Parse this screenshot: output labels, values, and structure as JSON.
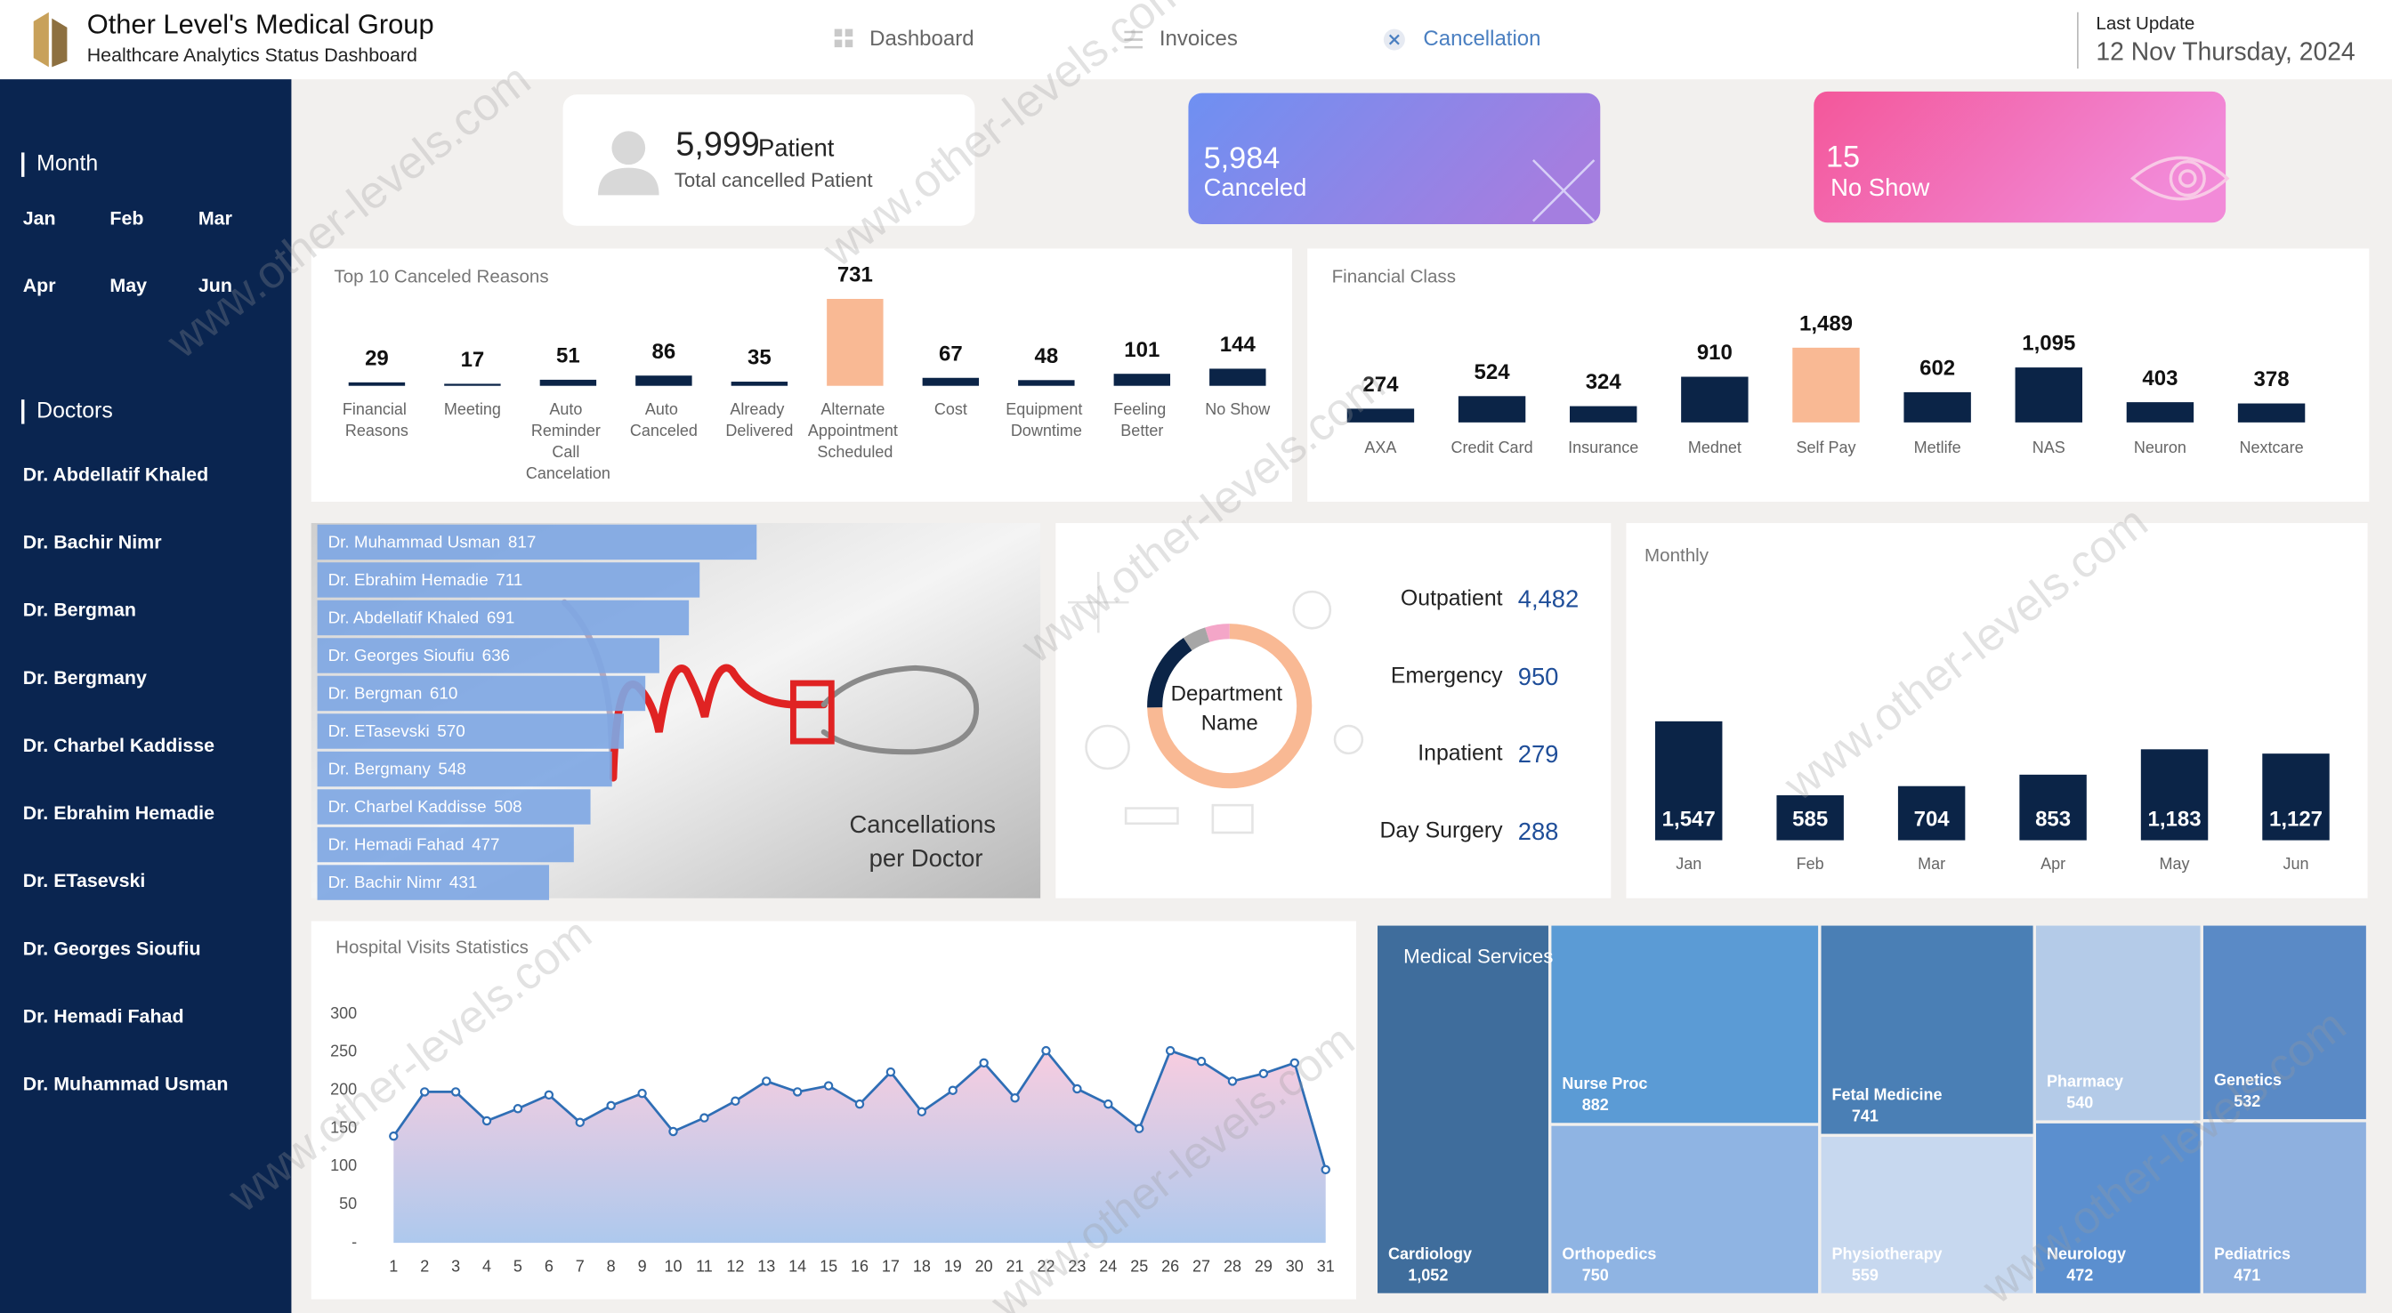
{
  "header": {
    "title": "Other Level's Medical Group",
    "subtitle": "Healthcare Analytics Status Dashboard",
    "nav": [
      "Dashboard",
      "Invoices",
      "Cancellation"
    ],
    "last_update_label": "Last Update",
    "last_update": "12 Nov Thursday, 2024"
  },
  "sidebar": {
    "month_label": "Month",
    "months": [
      "Jan",
      "Feb",
      "Mar",
      "Apr",
      "May",
      "Jun"
    ],
    "doctors_label": "Doctors",
    "doctors": [
      "Dr. Abdellatif Khaled",
      "Dr. Bachir Nimr",
      "Dr. Bergman",
      "Dr. Bergmany",
      "Dr. Charbel Kaddisse",
      "Dr. Ebrahim Hemadie",
      "Dr. ETasevski",
      "Dr. Georges Sioufiu",
      "Dr. Hemadi Fahad",
      "Dr. Muhammad Usman"
    ]
  },
  "kpis": {
    "patients": {
      "value": "5,999",
      "label": "Patient",
      "caption": "Total cancelled Patient"
    },
    "canceled": {
      "value": "5,984",
      "label": "Canceled"
    },
    "no_show": {
      "value": "15",
      "label": "No Show"
    }
  },
  "watermark": "www.other-levels.com",
  "chart_data": [
    {
      "type": "bar",
      "title": "Top 10 Canceled Reasons",
      "categories": [
        "Financial Reasons",
        "Meeting",
        "Auto Reminder Call Cancelation",
        "Auto Canceled",
        "Already Delivered",
        "Alternate Appointment Scheduled",
        "Cost",
        "Equipment Downtime",
        "Feeling Better",
        "No Show"
      ],
      "values": [
        29,
        17,
        51,
        86,
        35,
        731,
        67,
        48,
        101,
        144
      ],
      "colors": [
        "#0b2447",
        "#0b2447",
        "#0b2447",
        "#0b2447",
        "#0b2447",
        "#f9b994",
        "#0b2447",
        "#0b2447",
        "#0b2447",
        "#0b2447"
      ]
    },
    {
      "type": "bar",
      "title": "Financial Class",
      "categories": [
        "AXA",
        "Credit Card",
        "Insurance",
        "Mednet",
        "Self Pay",
        "Metlife",
        "NAS",
        "Neuron",
        "Nextcare"
      ],
      "values": [
        274,
        524,
        324,
        910,
        1489,
        602,
        1095,
        403,
        378
      ],
      "value_labels": [
        "274",
        "524",
        "324",
        "910",
        "1,489",
        "602",
        "1,095",
        "403",
        "378"
      ],
      "colors": [
        "#0b2447",
        "#0b2447",
        "#0b2447",
        "#0b2447",
        "#f9b994",
        "#0b2447",
        "#0b2447",
        "#0b2447",
        "#0b2447"
      ]
    },
    {
      "type": "hbar",
      "title": "Cancellations per Doctor",
      "categories": [
        "Dr. Muhammad Usman",
        "Dr. Ebrahim Hemadie",
        "Dr. Abdellatif Khaled",
        "Dr. Georges Sioufiu",
        "Dr. Bergman",
        "Dr. ETasevski",
        "Dr. Bergmany",
        "Dr. Charbel Kaddisse",
        "Dr. Hemadi Fahad",
        "Dr. Bachir Nimr"
      ],
      "values": [
        817,
        711,
        691,
        636,
        610,
        570,
        548,
        508,
        477,
        431
      ],
      "color": "#7fa7e3"
    },
    {
      "type": "donut",
      "title": "Department Name",
      "categories": [
        "Outpatient",
        "Emergency",
        "Inpatient",
        "Day Surgery"
      ],
      "values": [
        4482,
        950,
        279,
        288
      ],
      "value_labels": [
        "4,482",
        "950",
        "279",
        "288"
      ],
      "colors": [
        "#f9b994",
        "#0b2447",
        "#a6a6a6",
        "#f4a6c8"
      ]
    },
    {
      "type": "bar",
      "title": "Monthly",
      "label_position": "inside",
      "categories": [
        "Jan",
        "Feb",
        "Mar",
        "Apr",
        "May",
        "Jun"
      ],
      "values": [
        1547,
        585,
        704,
        853,
        1183,
        1127
      ],
      "value_labels": [
        "1,547",
        "585",
        "704",
        "853",
        "1,183",
        "1,127"
      ],
      "color": "#0b2447"
    },
    {
      "type": "line",
      "title": "Hospital Visits Statistics",
      "x": [
        1,
        2,
        3,
        4,
        5,
        6,
        7,
        8,
        9,
        10,
        11,
        12,
        13,
        14,
        15,
        16,
        17,
        18,
        19,
        20,
        21,
        22,
        23,
        24,
        25,
        26,
        27,
        28,
        29,
        30,
        31
      ],
      "values": [
        140,
        198,
        198,
        160,
        176,
        194,
        158,
        180,
        196,
        146,
        164,
        186,
        212,
        198,
        206,
        182,
        224,
        172,
        200,
        236,
        190,
        252,
        202,
        182,
        150,
        252,
        238,
        212,
        222,
        236,
        96
      ],
      "xlim": [
        1,
        31
      ],
      "ylim": [
        0,
        300
      ],
      "yticks": [
        {
          "value": 0,
          "label": "-"
        },
        50,
        100,
        150,
        200,
        250,
        300
      ],
      "color": "#2f6eb5",
      "area": true
    },
    {
      "type": "treemap",
      "title": "Medical Services",
      "categories": [
        "Cardiology",
        "Nurse Proc",
        "Orthopedics",
        "Fetal Medicine",
        "Physiotherapy",
        "Pharmacy",
        "Neurology",
        "Genetics",
        "Pediatrics"
      ],
      "values": [
        1052,
        882,
        750,
        741,
        559,
        540,
        472,
        532,
        471
      ],
      "value_labels": [
        "1,052",
        "882",
        "750",
        "741",
        "559",
        "540",
        "472",
        "532",
        "471"
      ],
      "colors": [
        "#3f6d9c",
        "#5b9bd5",
        "#8fb4e3",
        "#4a7fb5",
        "#c7d8ef",
        "#b4cbe8",
        "#5b8fcf",
        "#5a8ac6",
        "#8eb0df"
      ]
    }
  ]
}
